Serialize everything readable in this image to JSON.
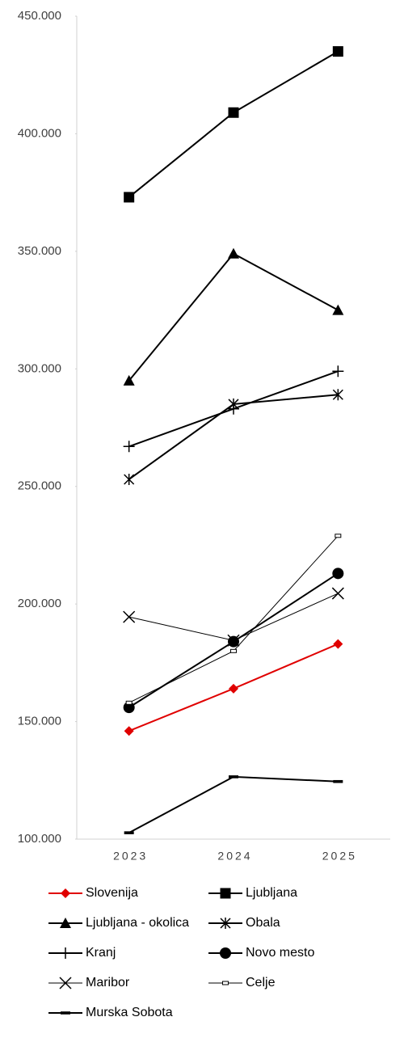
{
  "chart_data": {
    "type": "line",
    "categories": [
      "2023",
      "2024",
      "2025"
    ],
    "ylim": [
      100000,
      450000
    ],
    "yticks": [
      {
        "value": 100000,
        "label": "100.000"
      },
      {
        "value": 150000,
        "label": "150.000"
      },
      {
        "value": 200000,
        "label": "200.000"
      },
      {
        "value": 250000,
        "label": "250.000"
      },
      {
        "value": 300000,
        "label": "300.000"
      },
      {
        "value": 350000,
        "label": "350.000"
      },
      {
        "value": 400000,
        "label": "400.000"
      },
      {
        "value": 450000,
        "label": "450.000"
      }
    ],
    "grid": false,
    "legend": "bottom",
    "series": [
      {
        "name": "Slovenija",
        "color": "#e00000",
        "marker": "diamond",
        "line_width": 2,
        "values": [
          146000,
          164000,
          183000
        ]
      },
      {
        "name": "Ljubljana",
        "color": "#000000",
        "marker": "square",
        "line_width": 2,
        "values": [
          373000,
          409000,
          435000
        ]
      },
      {
        "name": "Ljubljana - okolica",
        "color": "#000000",
        "marker": "triangle",
        "line_width": 2,
        "values": [
          295000,
          349000,
          325000
        ]
      },
      {
        "name": "Obala",
        "color": "#000000",
        "marker": "asterisk",
        "line_width": 2,
        "values": [
          253000,
          285000,
          289000
        ]
      },
      {
        "name": "Kranj",
        "color": "#000000",
        "marker": "plus",
        "line_width": 2,
        "values": [
          267000,
          283000,
          299000
        ]
      },
      {
        "name": "Novo mesto",
        "color": "#000000",
        "marker": "circle",
        "line_width": 2,
        "values": [
          156000,
          184000,
          213000
        ]
      },
      {
        "name": "Maribor",
        "color": "#000000",
        "marker": "cross",
        "line_width": 1,
        "values": [
          194500,
          184500,
          204500
        ]
      },
      {
        "name": "Celje",
        "color": "#000000",
        "marker": "open-rect",
        "line_width": 1,
        "values": [
          158000,
          180000,
          229000
        ]
      },
      {
        "name": "Murska Sobota",
        "color": "#000000",
        "marker": "dash",
        "line_width": 2,
        "values": [
          102700,
          126500,
          124500
        ]
      }
    ]
  }
}
